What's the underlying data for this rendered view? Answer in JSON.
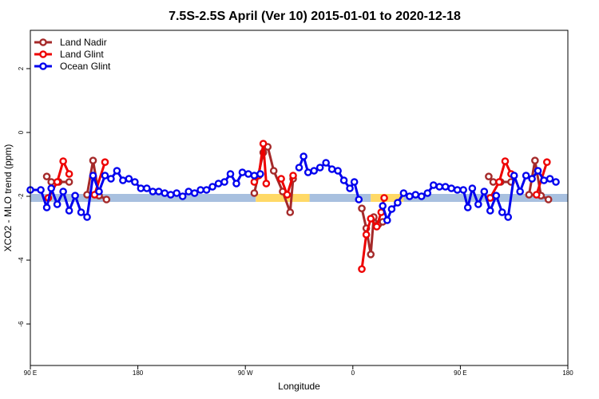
{
  "chart_data": {
    "type": "line",
    "title": "7.5S-2.5S April (Ver 10)   2015-01-01 to 2020-12-18",
    "xlabel": "Longitude",
    "ylabel": "XCO2 - MLO trend (ppm)",
    "xlim": [
      90,
      450
    ],
    "ylim": [
      -7.3,
      3.2
    ],
    "x_ticks": [
      {
        "value": 90,
        "label": "90 E"
      },
      {
        "value": 162,
        "label": "180"
      },
      {
        "value": 234,
        "label": "90 W"
      },
      {
        "value": 306,
        "label": "0"
      },
      {
        "value": 378,
        "label": "90 E"
      },
      {
        "value": 450,
        "label": "180"
      }
    ],
    "y_ticks": [
      {
        "value": -6,
        "label": "-6"
      },
      {
        "value": -4,
        "label": "-4"
      },
      {
        "value": -2,
        "label": "-2"
      },
      {
        "value": 0,
        "label": "0"
      },
      {
        "value": 2,
        "label": "2"
      }
    ],
    "legend_position": "top-left",
    "reference_band": {
      "y": -2.05,
      "color_land": "#FFD966",
      "color_ocean": "#A8C0DF",
      "segments": [
        {
          "x0": 90,
          "x1": 241,
          "kind": "ocean"
        },
        {
          "x0": 241,
          "x1": 277,
          "kind": "land"
        },
        {
          "x0": 277,
          "x1": 318,
          "kind": "ocean"
        },
        {
          "x0": 318,
          "x1": 340,
          "kind": "land"
        },
        {
          "x0": 340,
          "x1": 450,
          "kind": "ocean"
        }
      ]
    },
    "series": [
      {
        "name": "Land Nadir",
        "color": "#A52A2A",
        "segments": [
          [
            [
              101,
              -1.38
            ],
            [
              104,
              -1.55
            ],
            [
              109,
              -1.55
            ],
            [
              116,
              -1.55
            ]
          ],
          [
            [
              128,
              -1.95
            ],
            [
              132,
              -0.88
            ],
            [
              136,
              -1.98
            ],
            [
              141,
              -2.1
            ]
          ],
          [
            [
              240,
              -1.9
            ],
            [
              246,
              -0.63
            ],
            [
              249,
              -0.45
            ],
            [
              253,
              -1.2
            ],
            [
              259,
              -1.85
            ],
            [
              264,
              -2.5
            ],
            [
              266,
              -1.45
            ]
          ],
          [
            [
              312,
              -2.38
            ],
            [
              315,
              -3.0
            ],
            [
              318,
              -3.82
            ],
            [
              320,
              -2.65
            ],
            [
              323,
              -2.88
            ],
            [
              326,
              -2.8
            ]
          ],
          [
            [
              397,
              -1.38
            ],
            [
              400,
              -1.55
            ],
            [
              405,
              -1.55
            ],
            [
              412,
              -1.55
            ]
          ],
          [
            [
              424,
              -1.95
            ],
            [
              428,
              -0.88
            ],
            [
              432,
              -1.98
            ],
            [
              437,
              -2.1
            ]
          ]
        ]
      },
      {
        "name": "Land Glint",
        "color": "#EE0000",
        "segments": [
          [
            [
              102,
              -2.05
            ],
            [
              108,
              -1.55
            ],
            [
              112,
              -0.9
            ],
            [
              116,
              -1.3
            ]
          ],
          [
            [
              133,
              -1.95
            ],
            [
              140,
              -0.93
            ]
          ],
          [
            [
              240,
              -1.55
            ],
            [
              243,
              -1.35
            ],
            [
              246,
              -0.35
            ],
            [
              248,
              -1.6
            ]
          ],
          [
            [
              258,
              -1.45
            ],
            [
              262,
              -1.95
            ],
            [
              266,
              -1.35
            ]
          ],
          [
            [
              312,
              -4.28
            ],
            [
              315,
              -3.2
            ],
            [
              318,
              -2.7
            ],
            [
              322,
              -2.95
            ],
            [
              325,
              -2.5
            ],
            [
              327,
              -2.05
            ]
          ],
          [
            [
              398,
              -2.05
            ],
            [
              404,
              -1.55
            ],
            [
              408,
              -0.9
            ],
            [
              412,
              -1.3
            ]
          ],
          [
            [
              429,
              -1.95
            ],
            [
              436,
              -0.93
            ]
          ]
        ]
      },
      {
        "name": "Ocean Glint",
        "color": "#0000EE",
        "segments": [
          [
            [
              90,
              -1.8
            ],
            [
              97,
              -1.8
            ],
            [
              101,
              -2.35
            ],
            [
              104,
              -1.75
            ],
            [
              108,
              -2.25
            ],
            [
              112,
              -1.85
            ],
            [
              116,
              -2.45
            ],
            [
              120,
              -1.98
            ],
            [
              124,
              -2.5
            ],
            [
              128,
              -2.65
            ],
            [
              132,
              -1.35
            ],
            [
              136,
              -1.85
            ],
            [
              140,
              -1.35
            ],
            [
              144,
              -1.45
            ],
            [
              148,
              -1.2
            ],
            [
              152,
              -1.5
            ],
            [
              156,
              -1.45
            ],
            [
              160,
              -1.55
            ],
            [
              164,
              -1.75
            ],
            [
              168,
              -1.75
            ],
            [
              172,
              -1.85
            ],
            [
              176,
              -1.85
            ],
            [
              180,
              -1.9
            ],
            [
              184,
              -1.95
            ],
            [
              188,
              -1.9
            ],
            [
              192,
              -2.0
            ],
            [
              196,
              -1.85
            ],
            [
              200,
              -1.9
            ],
            [
              204,
              -1.8
            ],
            [
              208,
              -1.8
            ],
            [
              212,
              -1.7
            ],
            [
              216,
              -1.6
            ],
            [
              220,
              -1.55
            ],
            [
              224,
              -1.3
            ],
            [
              228,
              -1.6
            ],
            [
              232,
              -1.25
            ],
            [
              236,
              -1.3
            ],
            [
              240,
              -1.35
            ],
            [
              244,
              -1.3
            ]
          ],
          [
            [
              270,
              -1.1
            ],
            [
              273,
              -0.75
            ],
            [
              276,
              -1.25
            ],
            [
              280,
              -1.2
            ],
            [
              284,
              -1.1
            ],
            [
              288,
              -0.95
            ],
            [
              292,
              -1.15
            ],
            [
              296,
              -1.2
            ],
            [
              300,
              -1.5
            ],
            [
              304,
              -1.75
            ],
            [
              307,
              -1.55
            ],
            [
              310,
              -2.1
            ]
          ],
          [
            [
              326,
              -2.3
            ],
            [
              329,
              -2.75
            ],
            [
              332,
              -2.4
            ],
            [
              336,
              -2.2
            ],
            [
              340,
              -1.9
            ],
            [
              344,
              -2.0
            ],
            [
              348,
              -1.95
            ],
            [
              352,
              -2.0
            ],
            [
              356,
              -1.9
            ],
            [
              360,
              -1.65
            ],
            [
              364,
              -1.7
            ],
            [
              368,
              -1.7
            ],
            [
              372,
              -1.75
            ],
            [
              376,
              -1.8
            ],
            [
              380,
              -1.8
            ],
            [
              383,
              -2.35
            ],
            [
              386,
              -1.75
            ],
            [
              390,
              -2.25
            ],
            [
              394,
              -1.85
            ],
            [
              398,
              -2.45
            ],
            [
              402,
              -1.98
            ],
            [
              406,
              -2.5
            ],
            [
              410,
              -2.65
            ],
            [
              414,
              -1.35
            ],
            [
              418,
              -1.85
            ],
            [
              422,
              -1.35
            ],
            [
              426,
              -1.45
            ],
            [
              430,
              -1.2
            ],
            [
              434,
              -1.5
            ],
            [
              438,
              -1.45
            ],
            [
              442,
              -1.55
            ]
          ]
        ]
      }
    ]
  }
}
